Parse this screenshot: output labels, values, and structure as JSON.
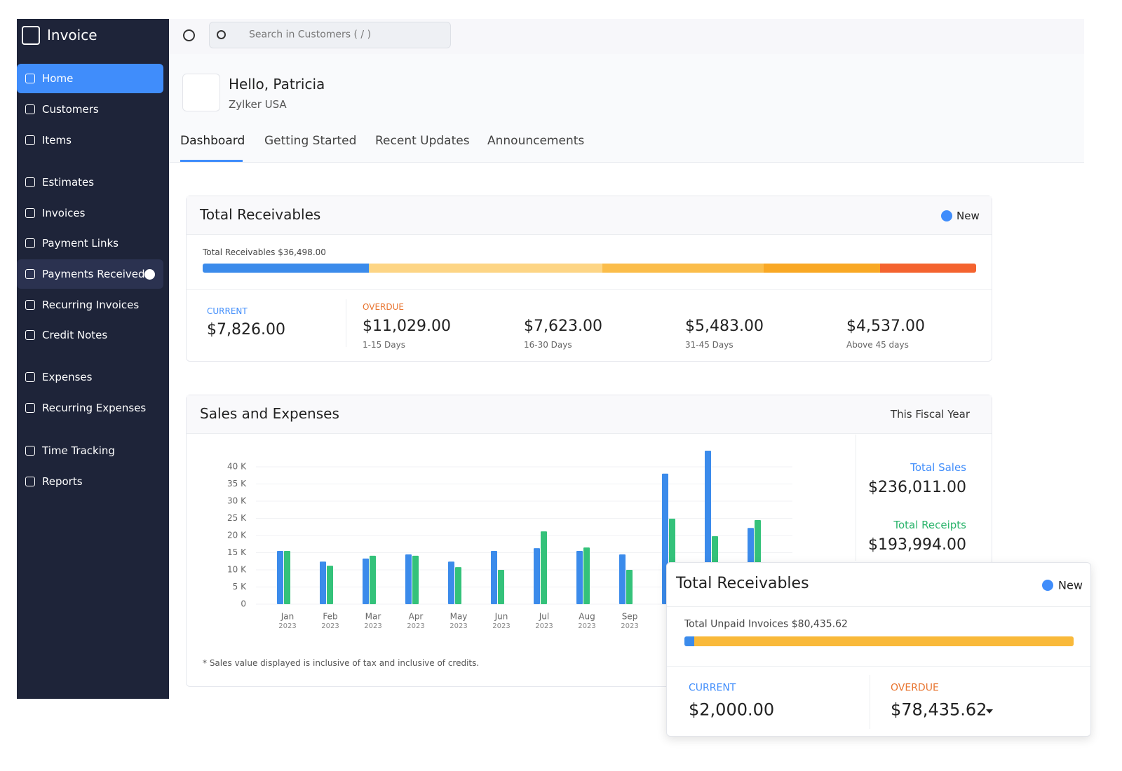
{
  "sidebar": {
    "brand": "Invoice",
    "active": 0,
    "items": [
      "Home",
      "Customers",
      "Items",
      "Estimates",
      "Invoices",
      "Payment Links",
      "Payments Received",
      "Recurring Invoices",
      "Credit Notes",
      "Expenses",
      "Recurring Expenses",
      "Time Tracking",
      "Reports"
    ]
  },
  "search": {
    "placeholder": "Search in Customers ( / )"
  },
  "greeting": {
    "title": "Hello, Patricia",
    "org": "Zylker USA"
  },
  "tabs": [
    "Dashboard",
    "Getting Started",
    "Recent Updates",
    "Announcements"
  ],
  "receivables": {
    "title": "Total Receivables",
    "new": "New",
    "total": "Total Receivables $36,498.00",
    "current_label": "CURRENT",
    "overdue_label": "OVERDUE",
    "values": [
      7826,
      11029,
      7623,
      5483,
      4537
    ],
    "value_labels": [
      "$7,826.00",
      "$11,029.00",
      "$7,623.00",
      "$5,483.00",
      "$4,537.00"
    ],
    "ranges": [
      null,
      "1-15 Days",
      "16-30 Days",
      "31-45 Days",
      "Above 45 days"
    ],
    "colors": [
      "#3b8beb",
      "#fdd585",
      "#fbbd4a",
      "#f9a825",
      "#f4632f"
    ]
  },
  "sales_expenses": {
    "title": "Sales and Expenses",
    "period": "This Fiscal Year",
    "chart_data": {
      "type": "bar",
      "categories": [
        "Jan",
        "Feb",
        "Mar",
        "Apr",
        "May",
        "Jun",
        "Jul",
        "Aug",
        "Sep",
        null,
        null,
        null
      ],
      "years": [
        "2023",
        "2023",
        "2023",
        "2023",
        "2023",
        "2023",
        "2023",
        "2023",
        "2023",
        null,
        null,
        null
      ],
      "series": [
        {
          "color": "#3b8beb",
          "values": [
            15500,
            12400,
            13300,
            14500,
            12400,
            15500,
            16300,
            15500,
            14500,
            38000,
            44700,
            22200
          ]
        },
        {
          "color": "#34c27a",
          "values": [
            15500,
            11200,
            14100,
            14100,
            10800,
            10000,
            21200,
            16500,
            10000,
            24900,
            19800,
            24500
          ]
        }
      ],
      "ylim": [
        0,
        45000
      ],
      "yticks": [
        0,
        {
          "value": 5000,
          "label": "5 K"
        },
        {
          "value": 10000,
          "label": "10 K"
        },
        {
          "value": 15000,
          "label": "15 K"
        },
        {
          "value": 20000,
          "label": "20 K"
        },
        {
          "value": 25000,
          "label": "25 K"
        },
        {
          "value": 30000,
          "label": "30 K"
        },
        {
          "value": 35000,
          "label": "35 K"
        },
        {
          "value": 40000,
          "label": "40 K"
        }
      ],
      "grid": true
    },
    "totals": [
      {
        "label": "Total Sales",
        "value": "$236,011.00"
      },
      {
        "label": "Total Receipts",
        "value": "$193,994.00"
      }
    ],
    "note": "* Sales value displayed is inclusive of tax and inclusive of credits."
  },
  "overlay": {
    "title": "Total Receivables",
    "new": "New",
    "total": "Total Unpaid Invoices $80,435.62",
    "labels": [
      "CURRENT",
      "OVERDUE"
    ],
    "values": [
      2000,
      78435.62
    ],
    "value_labels": [
      "$2,000.00",
      "$78,435.62"
    ],
    "colors": [
      "#3b8beb",
      "#f9b93a"
    ]
  }
}
